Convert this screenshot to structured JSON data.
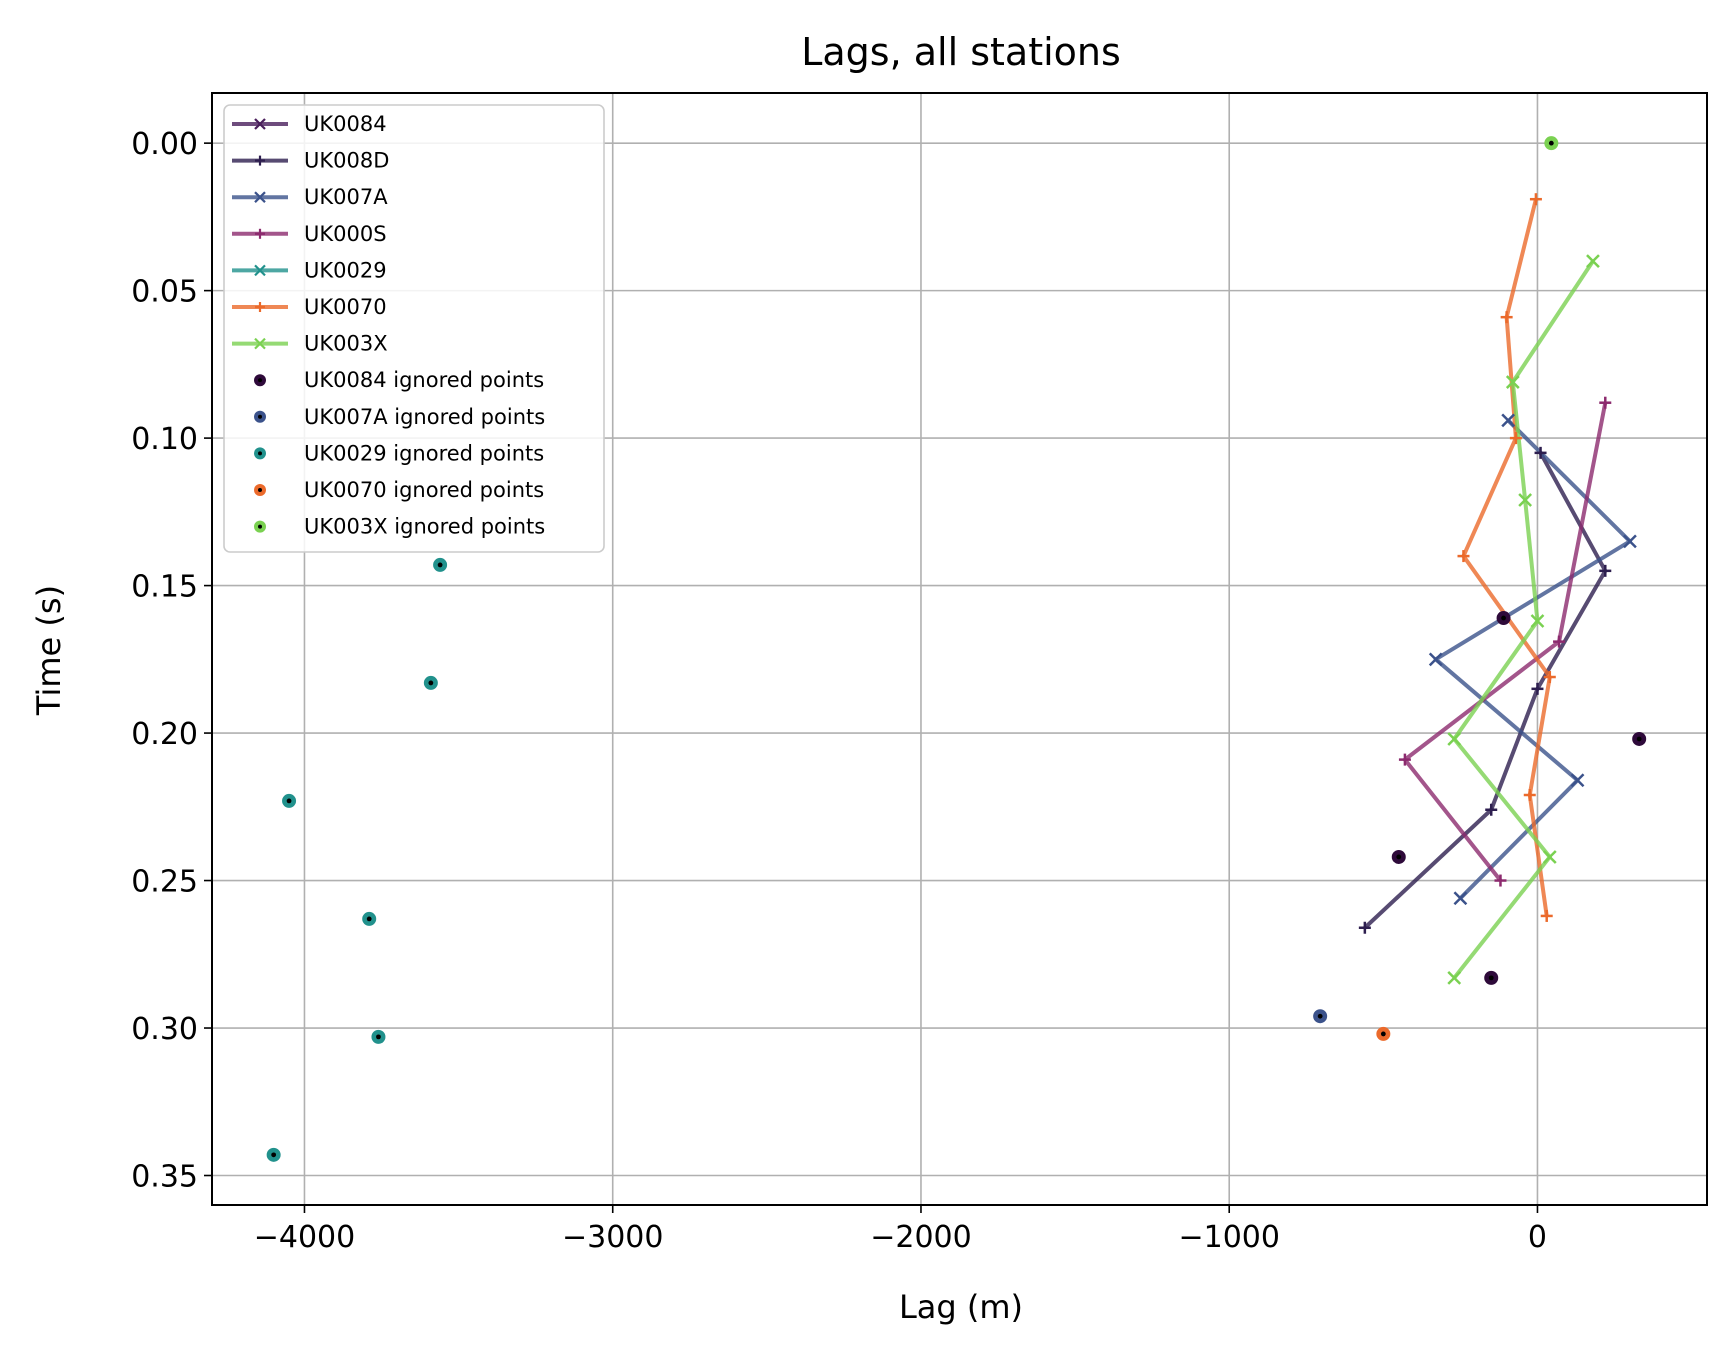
{
  "chart_data": {
    "type": "line",
    "title": "Lags, all stations",
    "xlabel": "Lag (m)",
    "ylabel": "Time (s)",
    "xlim": [
      -4300,
      550
    ],
    "ylim": [
      0.36,
      -0.017
    ],
    "y_inverted": true,
    "grid": true,
    "legend_position": "upper-left",
    "xticks": [
      -4000,
      -3000,
      -2000,
      -1000,
      0
    ],
    "xtick_labels": [
      "−4000",
      "−3000",
      "−2000",
      "−1000",
      "0"
    ],
    "yticks": [
      0.0,
      0.05,
      0.1,
      0.15,
      0.2,
      0.25,
      0.3,
      0.35
    ],
    "ytick_labels": [
      "0.00",
      "0.05",
      "0.10",
      "0.15",
      "0.20",
      "0.25",
      "0.30",
      "0.35"
    ],
    "series": [
      {
        "name": "UK0084",
        "color": "#4a1f5c",
        "marker": "x",
        "x": [],
        "y": []
      },
      {
        "name": "UK008D",
        "color": "#2d1e4f",
        "marker": "+",
        "x": [
          -560,
          -150,
          0,
          220,
          10
        ],
        "y": [
          0.266,
          0.226,
          0.185,
          0.145,
          0.105
        ]
      },
      {
        "name": "UK007A",
        "color": "#3b528b",
        "marker": "x",
        "x": [
          -250,
          130,
          -330,
          300,
          -95
        ],
        "y": [
          0.256,
          0.216,
          0.175,
          0.135,
          0.094
        ]
      },
      {
        "name": "UK000S",
        "color": "#8c2a6e",
        "marker": "+",
        "x": [
          -120,
          -430,
          70,
          220
        ],
        "y": [
          0.25,
          0.209,
          0.169,
          0.088
        ]
      },
      {
        "name": "UK0029",
        "color": "#21918c",
        "marker": "x",
        "x": [],
        "y": []
      },
      {
        "name": "UK0070",
        "color": "#eb6a2b",
        "marker": "+",
        "x": [
          30,
          -25,
          40,
          -240,
          -70,
          -100,
          -5
        ],
        "y": [
          0.262,
          0.221,
          0.181,
          0.14,
          0.1,
          0.059,
          0.019
        ]
      },
      {
        "name": "UK003X",
        "color": "#7ad151",
        "marker": "x",
        "x": [
          -270,
          40,
          -270,
          0,
          -40,
          -80,
          180
        ],
        "y": [
          0.283,
          0.242,
          0.202,
          0.162,
          0.121,
          0.081,
          0.04
        ]
      }
    ],
    "ignored_points": [
      {
        "name": "UK0084 ignored points",
        "color": "#2e0a3a",
        "x": [
          -110,
          330,
          -450,
          -150
        ],
        "y": [
          0.161,
          0.202,
          0.242,
          0.283
        ]
      },
      {
        "name": "UK007A ignored points",
        "color": "#3b528b",
        "x": [
          -705
        ],
        "y": [
          0.296
        ]
      },
      {
        "name": "UK0029 ignored points",
        "color": "#21918c",
        "x": [
          -3560,
          -3590,
          -4050,
          -3790,
          -3760,
          -4100
        ],
        "y": [
          0.143,
          0.183,
          0.223,
          0.263,
          0.303,
          0.343
        ]
      },
      {
        "name": "UK0070 ignored points",
        "color": "#eb6a2b",
        "x": [
          -500
        ],
        "y": [
          0.302
        ]
      },
      {
        "name": "UK003X ignored points",
        "color": "#7ad151",
        "x": [
          45
        ],
        "y": [
          0.0
        ]
      }
    ]
  }
}
